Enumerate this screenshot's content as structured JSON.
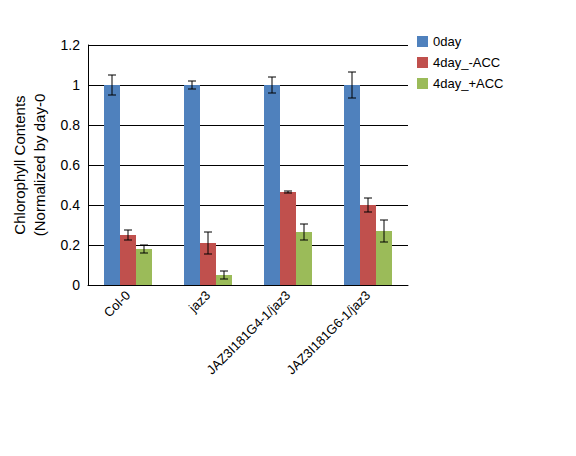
{
  "chart_data": {
    "type": "bar",
    "y_label": "Chlorophyll Contents\n(Normalized by day-0",
    "categories": [
      "Col-0",
      "jaz3",
      "JAZ3I181G4-1/jaz3",
      "JAZ3I181G6-1/jaz3"
    ],
    "series": [
      {
        "name": "0day",
        "color": "#4f81bd",
        "values": [
          1,
          1,
          1,
          1
        ],
        "errors": [
          0.05,
          0.02,
          0.04,
          0.065
        ]
      },
      {
        "name": "4day_-ACC",
        "color": "#c0504d",
        "values": [
          0.25,
          0.21,
          0.465,
          0.4
        ],
        "errors": [
          0.025,
          0.055,
          0.005,
          0.035
        ]
      },
      {
        "name": "4day_+ACC",
        "color": "#9bbb59",
        "values": [
          0.18,
          0.05,
          0.265,
          0.27
        ],
        "errors": [
          0.02,
          0.02,
          0.04,
          0.055
        ]
      }
    ],
    "ylim": [
      0,
      1.2
    ],
    "yticks": [
      0,
      0.2,
      0.4,
      0.6,
      0.8,
      1,
      1.2
    ],
    "grid": true,
    "legend": "right"
  }
}
